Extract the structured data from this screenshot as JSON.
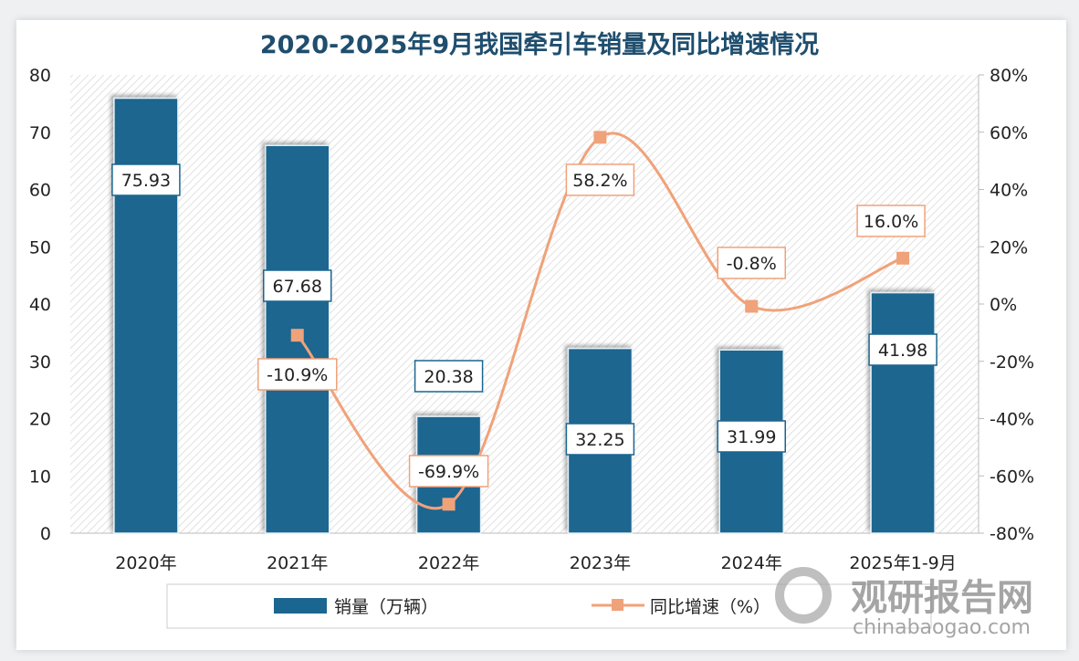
{
  "chart_data": {
    "type": "bar+line",
    "title": "2020-2025年9月我国牵引车销量及同比增速情况",
    "categories": [
      "2020年",
      "2021年",
      "2022年",
      "2023年",
      "2024年",
      "2025年1-9月"
    ],
    "series": [
      {
        "name": "销量（万辆）",
        "type": "bar",
        "axis": "left",
        "values": [
          75.93,
          67.68,
          20.38,
          32.25,
          31.99,
          41.98
        ],
        "labels": [
          "75.93",
          "67.68",
          "20.38",
          "32.25",
          "31.99",
          "41.98"
        ],
        "color": "#1b6690"
      },
      {
        "name": "同比增速（%）",
        "type": "line",
        "axis": "right",
        "values": [
          null,
          -10.9,
          -69.9,
          58.2,
          -0.8,
          16.0
        ],
        "labels": [
          "",
          "-10.9%",
          "-69.9%",
          "58.2%",
          "-0.8%",
          "16.0%"
        ],
        "color": "#f0a27a"
      }
    ],
    "ylim_left": [
      0,
      80
    ],
    "yticks_left": [
      "0",
      "10",
      "20",
      "30",
      "40",
      "50",
      "60",
      "70",
      "80"
    ],
    "ylim_right": [
      -80,
      80
    ],
    "yticks_right": [
      "-80%",
      "-60%",
      "-40%",
      "-20%",
      "0%",
      "20%",
      "40%",
      "60%",
      "80%"
    ],
    "legend": "bottom"
  },
  "watermark": {
    "cn": "观研报告网",
    "en": "chinabaogao.com"
  }
}
